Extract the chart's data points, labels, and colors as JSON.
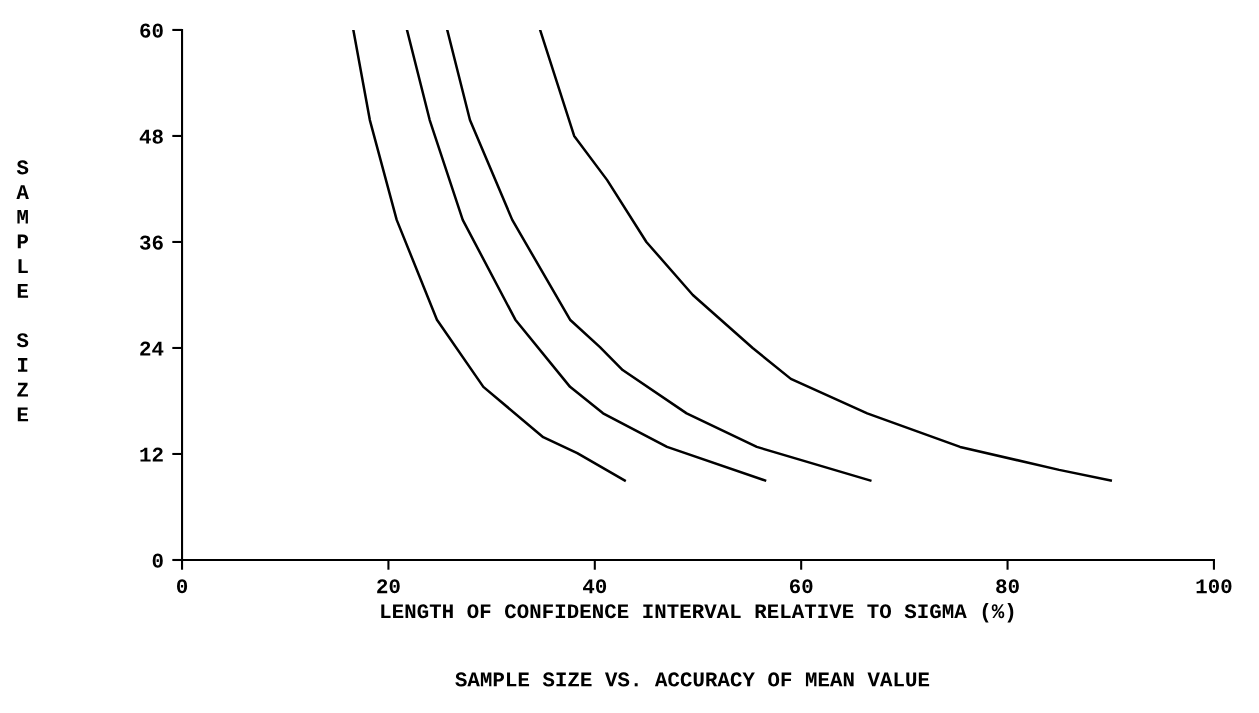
{
  "chart_data": {
    "type": "line",
    "title": "SAMPLE SIZE VS. ACCURACY OF MEAN VALUE",
    "xlabel": "LENGTH OF CONFIDENCE INTERVAL RELATIVE TO SIGMA (%)",
    "ylabel": "SAMPLE SIZE",
    "series": [
      {
        "color": "#000000",
        "x": [
          16.6,
          18.2,
          20.8,
          24.7,
          29.2,
          35,
          38.3,
          42.9
        ],
        "values": [
          60,
          49.8,
          38.5,
          27.2,
          19.6,
          13.9,
          12.1,
          9
        ]
      },
      {
        "color": "#000000",
        "x": [
          21.8,
          24,
          27.2,
          32.3,
          37.6,
          40.8,
          47,
          56.5
        ],
        "values": [
          60,
          49.8,
          38.5,
          27.2,
          19.6,
          16.6,
          12.8,
          9
        ]
      },
      {
        "color": "#000000",
        "x": [
          25.7,
          27.9,
          32,
          37.6,
          40.5,
          42.7,
          48.9,
          55.7,
          66.7
        ],
        "values": [
          60,
          49.8,
          38.5,
          27.2,
          24.1,
          21.5,
          16.6,
          12.8,
          9
        ]
      },
      {
        "color": "#000000",
        "x": [
          34.7,
          38,
          41.2,
          45,
          49.5,
          55.3,
          59,
          66.4,
          75.4,
          85,
          90
        ],
        "values": [
          60,
          48,
          43,
          36,
          30,
          24,
          20.5,
          16.6,
          12.8,
          10.2,
          9
        ]
      }
    ],
    "xlim": [
      0,
      100
    ],
    "xticks": [
      0,
      20,
      40,
      60,
      80,
      100
    ],
    "ylim": [
      0,
      60
    ],
    "yticks": [
      0,
      12,
      24,
      36,
      48,
      60
    ],
    "grid": false,
    "marker": "none",
    "line_style": "solid"
  }
}
